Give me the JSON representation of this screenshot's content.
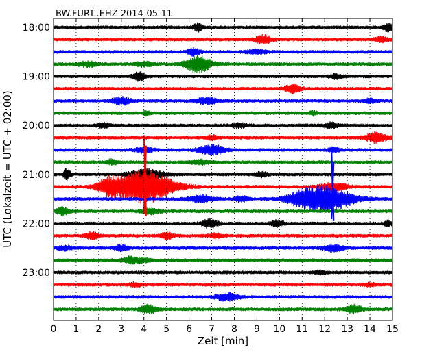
{
  "chart_data": {
    "type": "line",
    "title": "BW.FURT..EHZ 2014-05-11",
    "xlabel": "Zeit  [min]",
    "ylabel": "UTC (Lokalzeit = UTC + 02:00)",
    "xlim": [
      0,
      15
    ],
    "x_ticks": [
      "0",
      "1",
      "2",
      "3",
      "4",
      "5",
      "6",
      "7",
      "8",
      "9",
      "10",
      "11",
      "12",
      "13",
      "14",
      "15"
    ],
    "y_ticks": [
      {
        "label": "18:00",
        "trace": 0
      },
      {
        "label": "19:00",
        "trace": 4
      },
      {
        "label": "20:00",
        "trace": 8
      },
      {
        "label": "21:00",
        "trace": 12
      },
      {
        "label": "22:00",
        "trace": 16
      },
      {
        "label": "23:00",
        "trace": 20
      }
    ],
    "grid": "vertical dotted lines at every minute",
    "trace_interval_min": 15,
    "color_cycle": [
      "#000000",
      "#ff0000",
      "#0000ff",
      "#008000"
    ],
    "traces": [
      {
        "start": "18:00",
        "events": [
          {
            "t": 6.4,
            "a": 0.9,
            "w": 0.15
          },
          {
            "t": 14.8,
            "a": 0.9,
            "w": 0.15
          }
        ]
      },
      {
        "start": "18:15",
        "events": [
          {
            "t": 9.3,
            "a": 1.0,
            "w": 0.25
          },
          {
            "t": 14.5,
            "a": 0.6,
            "w": 0.2
          }
        ]
      },
      {
        "start": "18:30",
        "events": [
          {
            "t": 6.2,
            "a": 0.8,
            "w": 0.2
          },
          {
            "t": 9.0,
            "a": 0.5,
            "w": 0.3
          }
        ]
      },
      {
        "start": "18:45",
        "events": [
          {
            "t": 6.4,
            "a": 2.0,
            "w": 0.4
          },
          {
            "t": 1.5,
            "a": 0.6,
            "w": 0.3
          },
          {
            "t": 4.0,
            "a": 0.5,
            "w": 0.3
          }
        ]
      },
      {
        "start": "19:00",
        "events": [
          {
            "t": 3.8,
            "a": 1.0,
            "w": 0.2
          },
          {
            "t": 12.5,
            "a": 0.5,
            "w": 0.2
          }
        ]
      },
      {
        "start": "19:15",
        "events": [
          {
            "t": 10.6,
            "a": 1.0,
            "w": 0.25
          }
        ]
      },
      {
        "start": "19:30",
        "events": [
          {
            "t": 3.0,
            "a": 0.9,
            "w": 0.3
          },
          {
            "t": 6.8,
            "a": 0.9,
            "w": 0.3
          },
          {
            "t": 14.0,
            "a": 0.5,
            "w": 0.2
          }
        ]
      },
      {
        "start": "19:45",
        "events": [
          {
            "t": 4.1,
            "a": 0.6,
            "w": 0.1
          },
          {
            "t": 11.5,
            "a": 0.5,
            "w": 0.1
          }
        ]
      },
      {
        "start": "20:00",
        "events": [
          {
            "t": 2.2,
            "a": 0.5,
            "w": 0.2
          },
          {
            "t": 8.2,
            "a": 0.6,
            "w": 0.2
          },
          {
            "t": 12.3,
            "a": 0.7,
            "w": 0.2
          }
        ]
      },
      {
        "start": "20:15",
        "events": [
          {
            "t": 14.3,
            "a": 1.2,
            "w": 0.35
          },
          {
            "t": 7.0,
            "a": 0.5,
            "w": 0.2
          }
        ]
      },
      {
        "start": "20:30",
        "events": [
          {
            "t": 7.0,
            "a": 1.2,
            "w": 0.4
          },
          {
            "t": 4.0,
            "a": 0.6,
            "w": 0.3
          },
          {
            "t": 12.4,
            "a": 0.5,
            "w": 0.2
          }
        ]
      },
      {
        "start": "20:45",
        "events": [
          {
            "t": 2.6,
            "a": 0.6,
            "w": 0.2
          },
          {
            "t": 6.5,
            "a": 0.5,
            "w": 0.3
          }
        ]
      },
      {
        "start": "21:00",
        "events": [
          {
            "t": 0.6,
            "a": 1.5,
            "w": 0.1
          },
          {
            "t": 4.1,
            "a": 1.3,
            "w": 0.5
          },
          {
            "t": 9.2,
            "a": 0.5,
            "w": 0.2
          }
        ]
      },
      {
        "start": "21:15",
        "events": [
          {
            "t": 4.0,
            "a": 4.0,
            "w": 0.9
          },
          {
            "t": 2.4,
            "a": 1.6,
            "w": 0.35
          },
          {
            "t": 12.4,
            "a": 1.0,
            "w": 0.4
          }
        ]
      },
      {
        "start": "21:30",
        "events": [
          {
            "t": 12.1,
            "a": 3.0,
            "w": 0.8
          },
          {
            "t": 11.0,
            "a": 1.2,
            "w": 0.5
          },
          {
            "t": 6.5,
            "a": 0.8,
            "w": 0.4
          },
          {
            "t": 8.3,
            "a": 0.7,
            "w": 0.2
          }
        ]
      },
      {
        "start": "21:45",
        "events": [
          {
            "t": 0.4,
            "a": 0.9,
            "w": 0.2
          },
          {
            "t": 4.3,
            "a": 0.6,
            "w": 0.3
          }
        ]
      },
      {
        "start": "22:00",
        "events": [
          {
            "t": 6.9,
            "a": 1.0,
            "w": 0.25
          },
          {
            "t": 9.9,
            "a": 0.8,
            "w": 0.2
          },
          {
            "t": 14.8,
            "a": 0.8,
            "w": 0.1
          }
        ]
      },
      {
        "start": "22:15",
        "events": [
          {
            "t": 1.7,
            "a": 0.8,
            "w": 0.2
          },
          {
            "t": 5.0,
            "a": 0.8,
            "w": 0.2
          },
          {
            "t": 7.2,
            "a": 0.5,
            "w": 0.2
          }
        ]
      },
      {
        "start": "22:30",
        "events": [
          {
            "t": 0.5,
            "a": 0.6,
            "w": 0.2
          },
          {
            "t": 3.0,
            "a": 0.7,
            "w": 0.2
          },
          {
            "t": 12.4,
            "a": 0.8,
            "w": 0.3
          }
        ]
      },
      {
        "start": "22:45",
        "events": [
          {
            "t": 3.4,
            "a": 0.8,
            "w": 0.25
          },
          {
            "t": 4.0,
            "a": 0.5,
            "w": 0.2
          }
        ]
      },
      {
        "start": "23:00",
        "events": [
          {
            "t": 11.8,
            "a": 0.4,
            "w": 0.2
          }
        ]
      },
      {
        "start": "23:15",
        "events": [
          {
            "t": 3.6,
            "a": 0.4,
            "w": 0.2
          },
          {
            "t": 14.0,
            "a": 0.4,
            "w": 0.2
          }
        ]
      },
      {
        "start": "23:30",
        "events": [
          {
            "t": 7.7,
            "a": 0.9,
            "w": 0.35
          }
        ]
      },
      {
        "start": "23:45",
        "events": [
          {
            "t": 4.2,
            "a": 1.0,
            "w": 0.25
          },
          {
            "t": 13.3,
            "a": 1.0,
            "w": 0.25
          }
        ]
      }
    ],
    "spikes": [
      {
        "trace": 13,
        "t": 4.05,
        "up": 4.2,
        "down": 4.0
      },
      {
        "trace": 14,
        "t": 12.35,
        "up": 3.8,
        "down": 3.0
      }
    ]
  }
}
